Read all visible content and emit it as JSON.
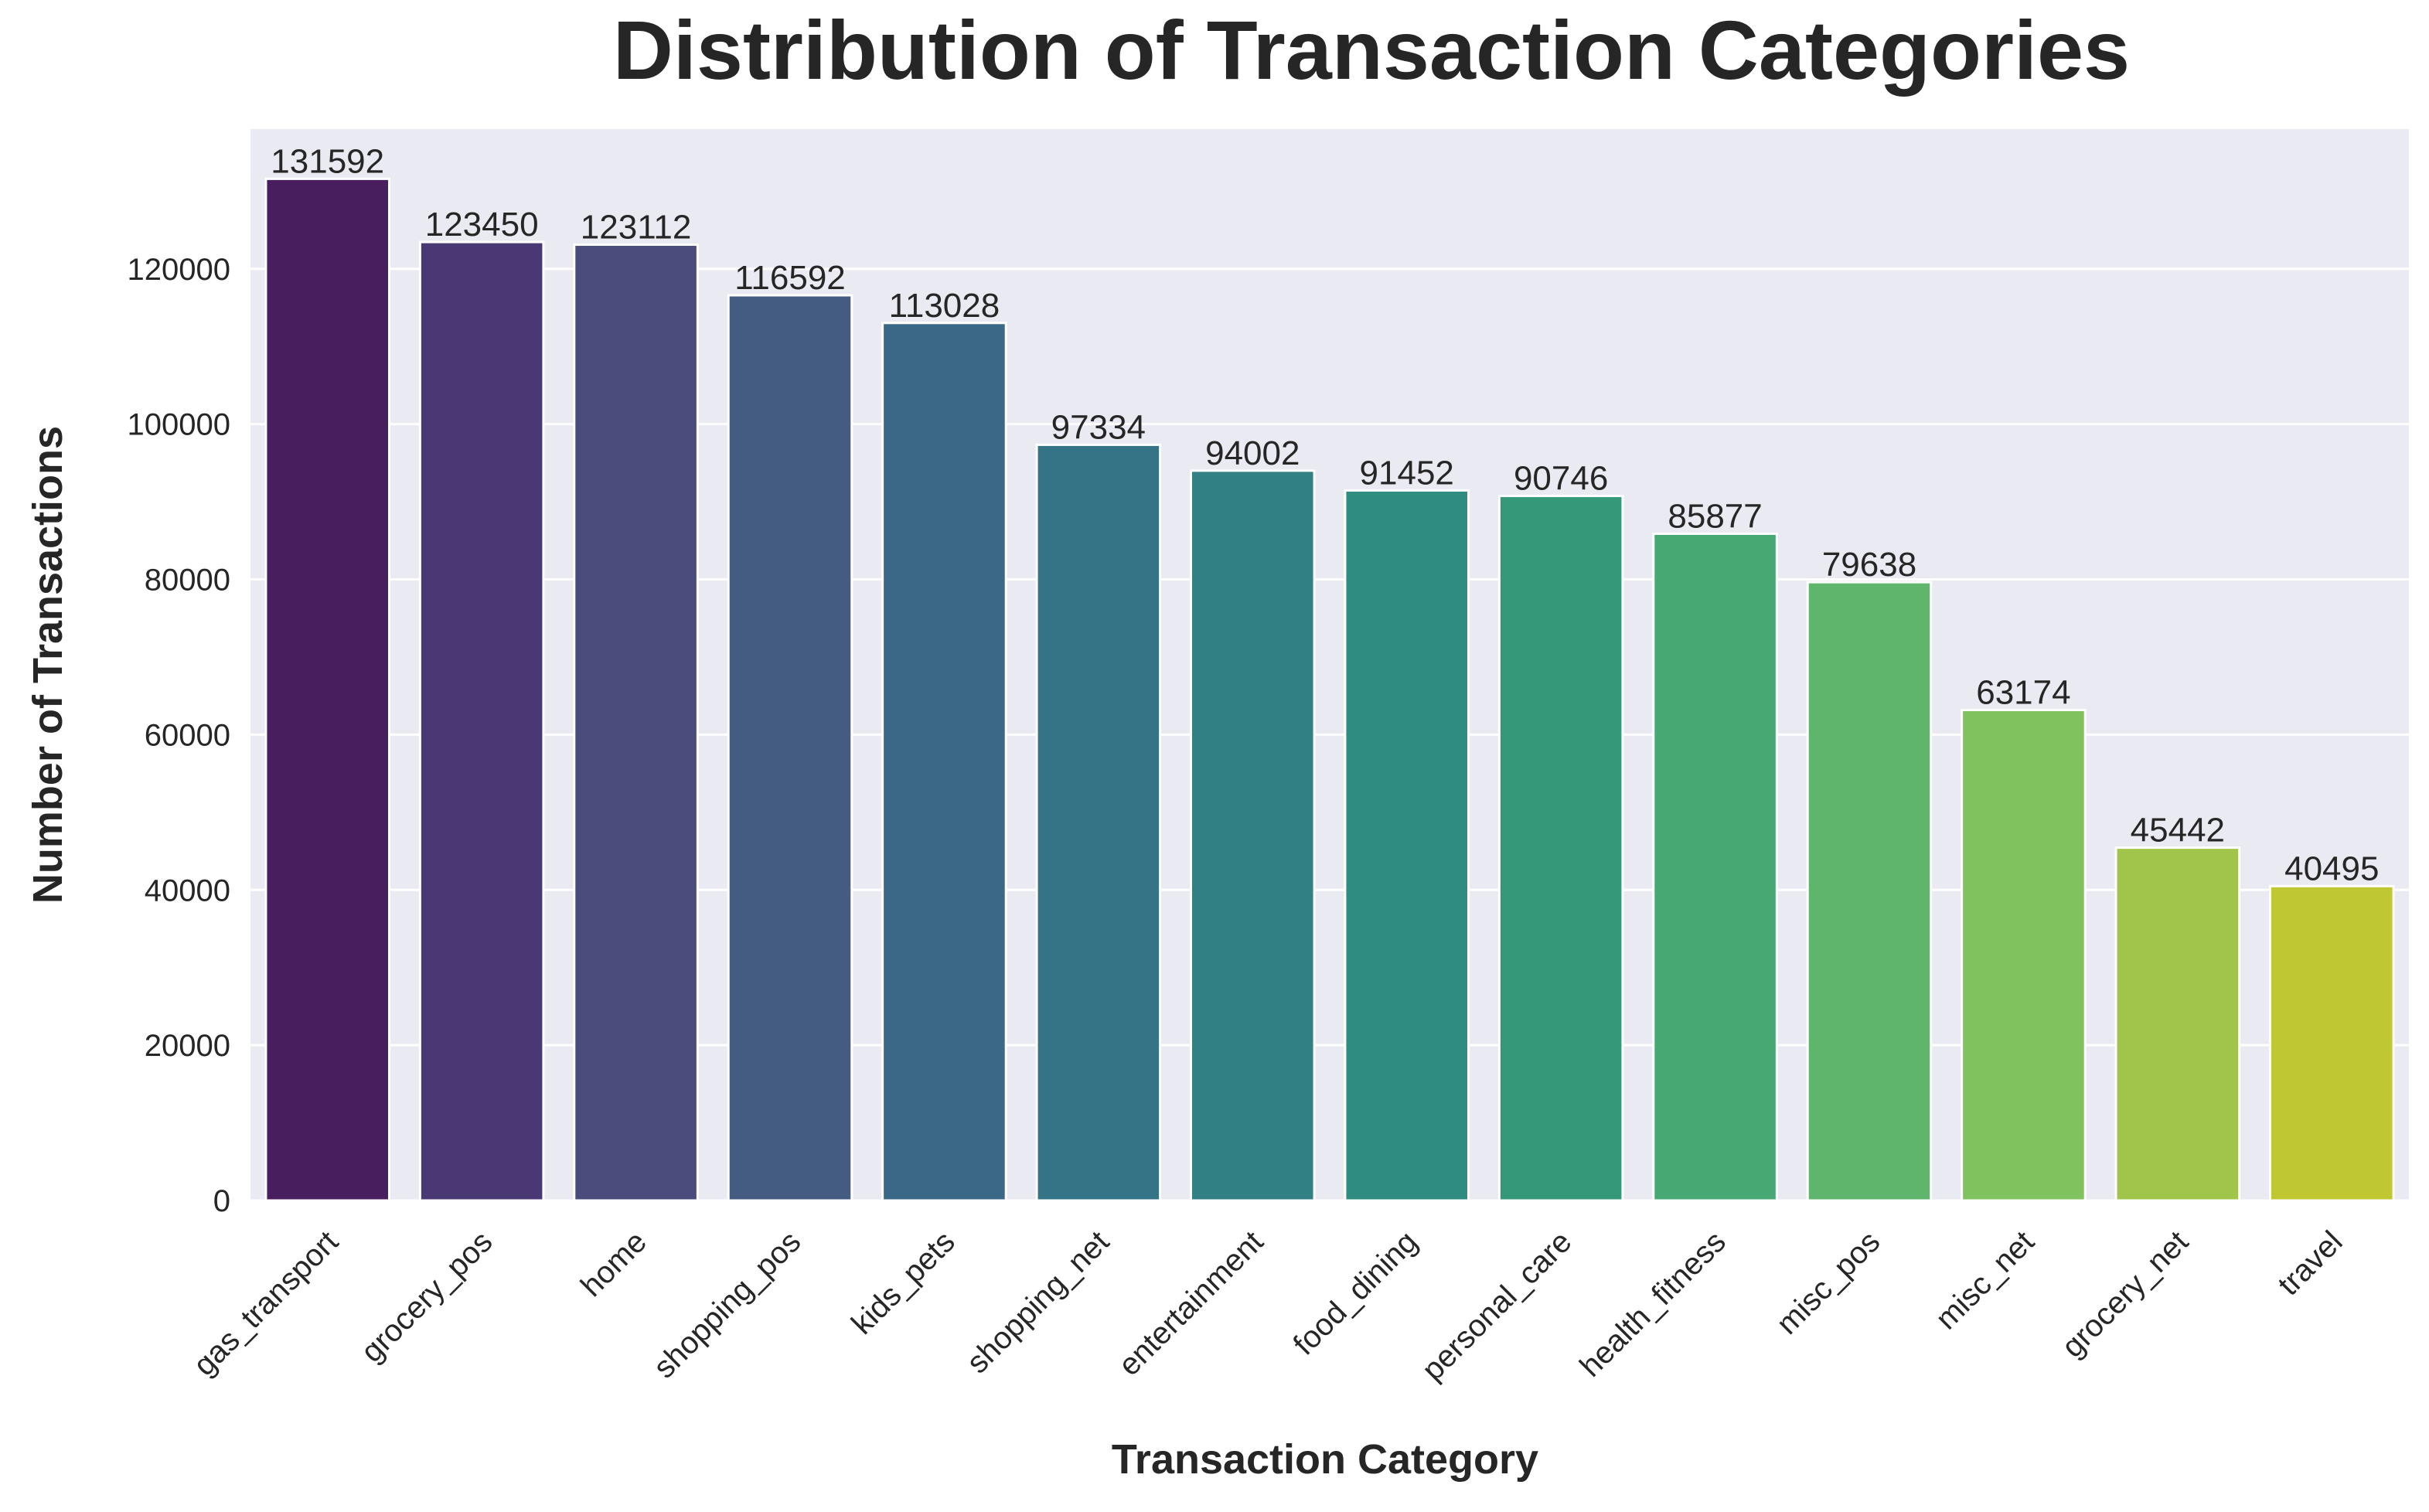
{
  "chart_data": {
    "type": "bar",
    "title": "Distribution of Transaction Categories",
    "xlabel": "Transaction Category",
    "ylabel": "Number of Transactions",
    "categories": [
      "gas_transport",
      "grocery_pos",
      "home",
      "shopping_pos",
      "kids_pets",
      "shopping_net",
      "entertainment",
      "food_dining",
      "personal_care",
      "health_fitness",
      "misc_pos",
      "misc_net",
      "grocery_net",
      "travel"
    ],
    "values": [
      131592,
      123450,
      123112,
      116592,
      113028,
      97334,
      94002,
      91452,
      90746,
      85877,
      79638,
      63174,
      45442,
      40495
    ],
    "data_labels": [
      "131592",
      "123450",
      "123112",
      "116592",
      "113028",
      "97334",
      "94002",
      "91452",
      "90746",
      "85877",
      "79638",
      "63174",
      "45442",
      "40495"
    ],
    "yticks": [
      0,
      20000,
      40000,
      60000,
      80000,
      100000,
      120000
    ],
    "ytick_labels": [
      "0",
      "20000",
      "40000",
      "60000",
      "80000",
      "100000",
      "120000"
    ],
    "ylim": [
      0,
      138000
    ],
    "grid": true,
    "background": "#eaeaf2",
    "colors": [
      "#481e5e",
      "#493873",
      "#4a4d7c",
      "#445c81",
      "#3b6886",
      "#357486",
      "#308084",
      "#2e8d80",
      "#359979",
      "#47a874",
      "#60b56c",
      "#7fc25e",
      "#a0c54a",
      "#bfc833"
    ]
  }
}
